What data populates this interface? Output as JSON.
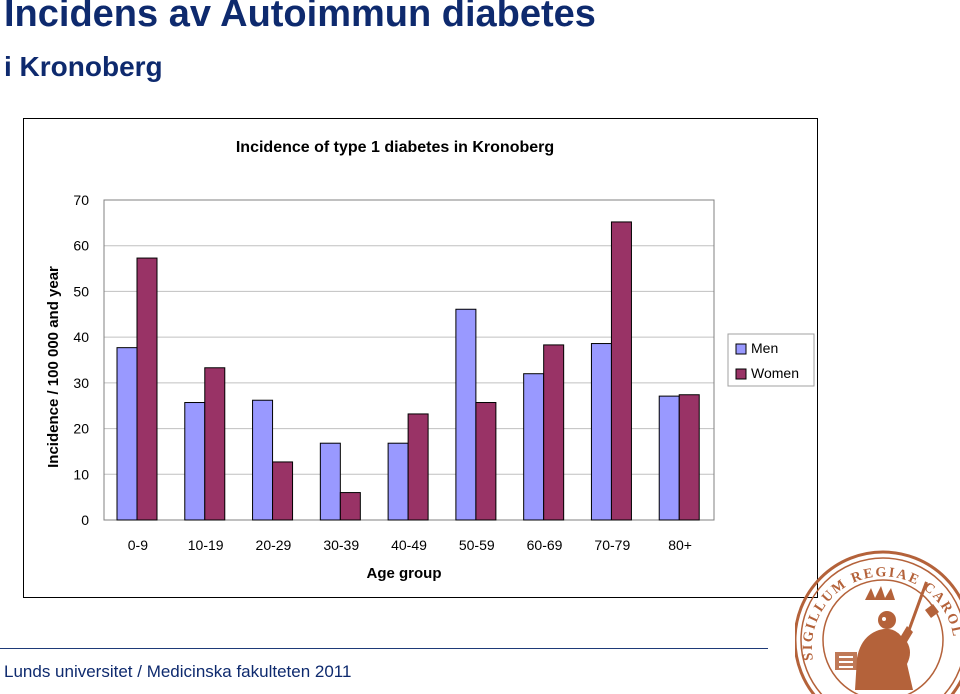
{
  "slide": {
    "title": "Incidens av Autoimmun diabetes",
    "subtitle": "i Kronoberg",
    "footer": "Lunds universitet / Medicinska fakulteten 2011",
    "seal_text": "SIGILLUM REGIAE CAROLINAE ADVNATORUM"
  },
  "colors": {
    "text_dark_blue": "#0e2a6e",
    "men": "#9999ff",
    "women": "#993366",
    "seal": "#b4623a"
  },
  "chart_data": {
    "type": "bar",
    "title": "Incidence of type 1 diabetes in Kronoberg",
    "xlabel": "Age group",
    "ylabel": "Incidence / 100 000 and year",
    "categories": [
      "0-9",
      "10-19",
      "20-29",
      "30-39",
      "40-49",
      "50-59",
      "60-69",
      "70-79",
      "80+"
    ],
    "series": [
      {
        "name": "Men",
        "color": "#9999ff",
        "values": [
          37.7,
          25.7,
          26.2,
          16.8,
          16.8,
          46.1,
          32.0,
          38.6,
          27.1
        ]
      },
      {
        "name": "Women",
        "color": "#993366",
        "values": [
          57.3,
          33.3,
          12.7,
          6.0,
          23.2,
          25.7,
          38.3,
          65.2,
          27.4
        ]
      }
    ],
    "ylim": [
      0,
      70
    ],
    "yticks": [
      0,
      10,
      20,
      30,
      40,
      50,
      60,
      70
    ],
    "grid": true,
    "legend": "right"
  }
}
